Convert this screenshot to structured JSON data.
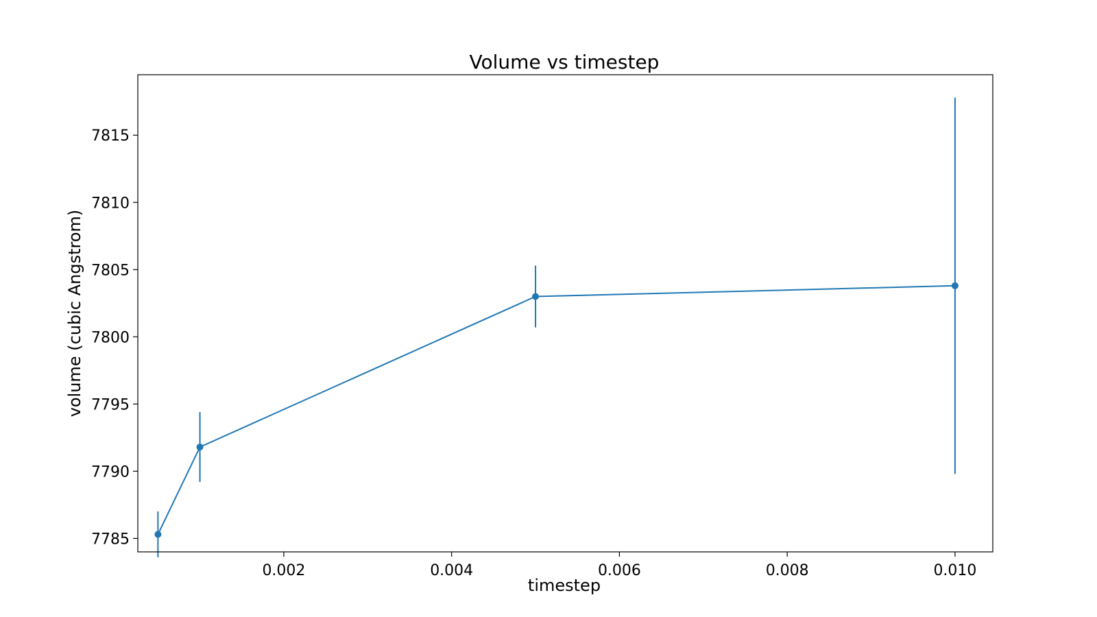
{
  "chart_data": {
    "type": "line",
    "title": "Volume vs timestep",
    "xlabel": "timestep",
    "ylabel": "volume (cubic Angstrom)",
    "xlim": [
      0.00026,
      0.01045
    ],
    "ylim": [
      7784.0,
      7819.5
    ],
    "xticks": [
      0.002,
      0.004,
      0.006,
      0.008,
      0.01
    ],
    "xtick_labels": [
      "0.002",
      "0.004",
      "0.006",
      "0.008",
      "0.010"
    ],
    "yticks": [
      7785,
      7790,
      7795,
      7800,
      7805,
      7810,
      7815
    ],
    "ytick_labels": [
      "7785",
      "7790",
      "7795",
      "7800",
      "7805",
      "7810",
      "7815"
    ],
    "grid": false,
    "series": [
      {
        "color": "#1f77b4",
        "marker": "circle",
        "x": [
          0.0005,
          0.001,
          0.005,
          0.01
        ],
        "y": [
          7785.3,
          7791.8,
          7803.0,
          7803.8
        ],
        "yerr": [
          1.7,
          2.6,
          2.3,
          14.0
        ]
      }
    ]
  }
}
